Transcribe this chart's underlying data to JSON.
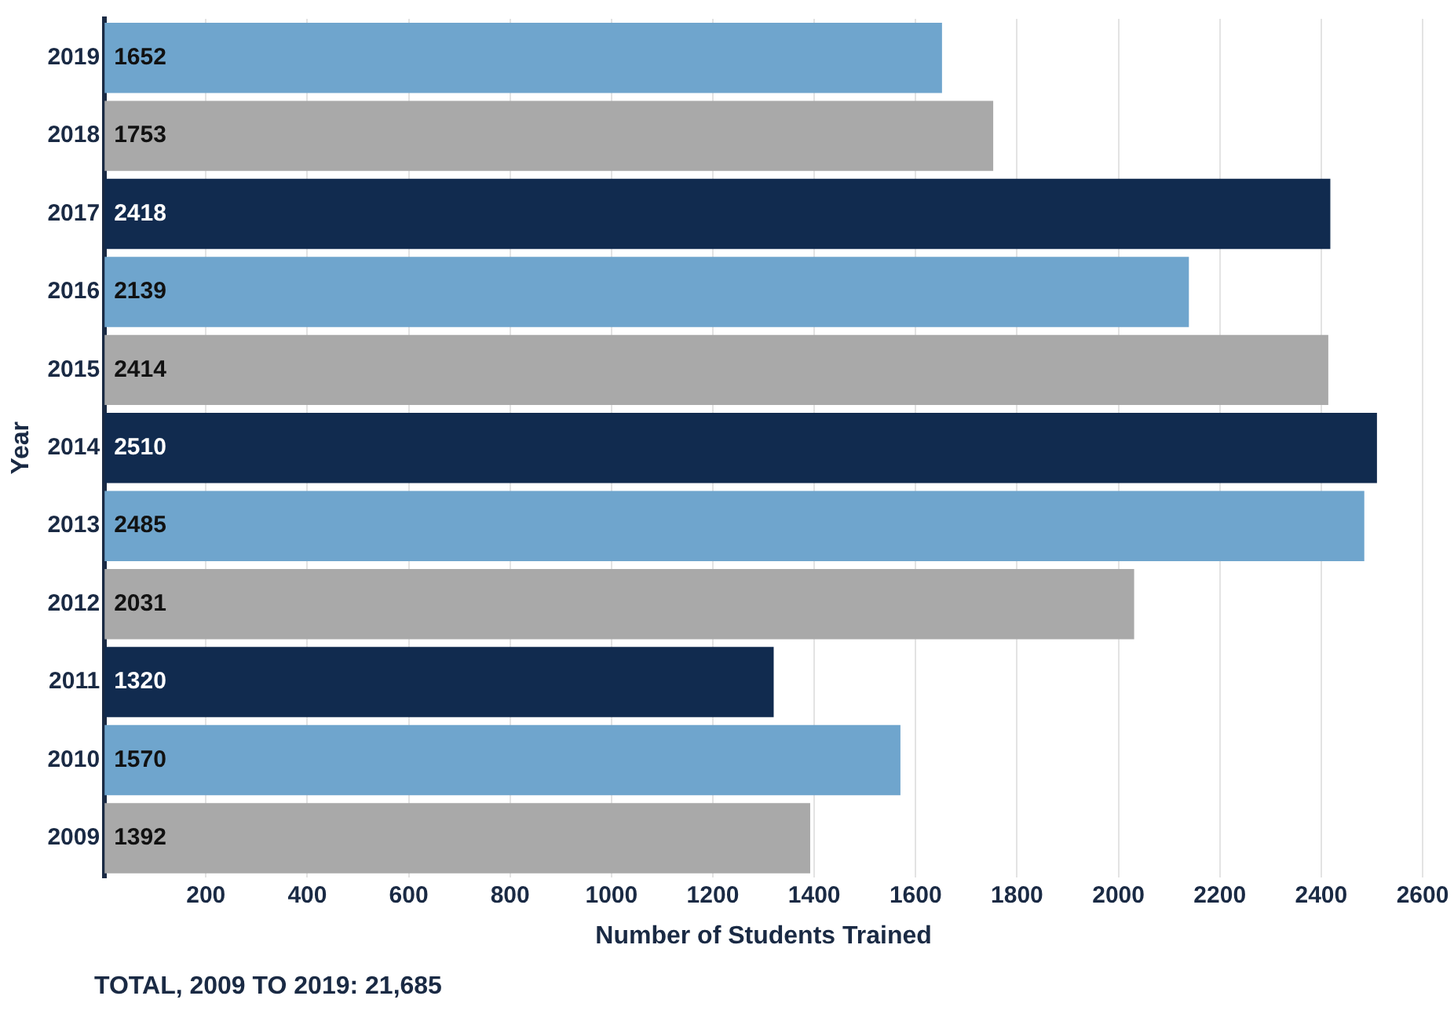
{
  "chart_data": {
    "type": "bar",
    "orientation": "horizontal",
    "ylabel": "Year",
    "xlabel": "Number of Students Trained",
    "categories": [
      "2019",
      "2018",
      "2017",
      "2016",
      "2015",
      "2014",
      "2013",
      "2012",
      "2011",
      "2010",
      "2009"
    ],
    "values": [
      1652,
      1753,
      2418,
      2139,
      2414,
      2510,
      2485,
      2031,
      1320,
      1570,
      1392
    ],
    "colors": [
      "#6fa5cd",
      "#a9a9a9",
      "#112b4f",
      "#6fa5cd",
      "#a9a9a9",
      "#112b4f",
      "#6fa5cd",
      "#a9a9a9",
      "#112b4f",
      "#6fa5cd",
      "#a9a9a9"
    ],
    "xlim": [
      0,
      2600
    ],
    "xticks": [
      200,
      400,
      600,
      800,
      1000,
      1200,
      1400,
      1600,
      1800,
      2000,
      2200,
      2400,
      2600
    ],
    "grid": "x",
    "legend": false,
    "data_labels": true,
    "annotations": [
      "TOTAL, 2009 TO 2019: 21,685"
    ]
  }
}
